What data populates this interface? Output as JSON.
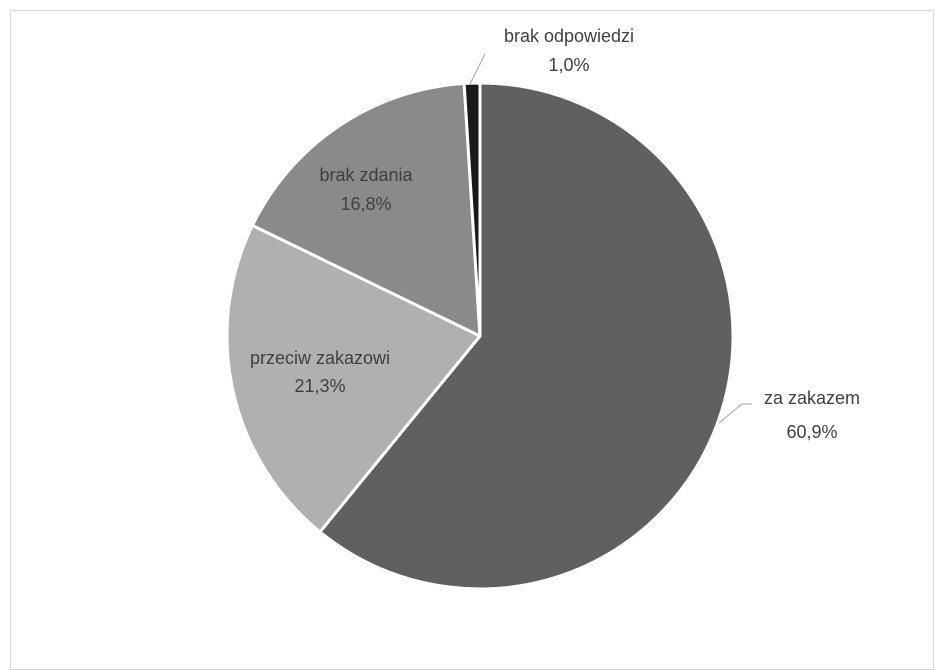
{
  "chart_data": {
    "type": "pie",
    "title": "",
    "slices": [
      {
        "label": "za zakazem",
        "value": 60.9,
        "value_label": "60,9%",
        "color": "#606060"
      },
      {
        "label": "przeciw zakazowi",
        "value": 21.3,
        "value_label": "21,3%",
        "color": "#b0b0b0"
      },
      {
        "label": "brak zdania",
        "value": 16.8,
        "value_label": "16,8%",
        "color": "#8a8a8a"
      },
      {
        "label": "brak odpowiedzi",
        "value": 1.0,
        "value_label": "1,0%",
        "color": "#1a1a1a"
      }
    ],
    "legend": "none",
    "start": "top",
    "direction": "clockwise",
    "slice_border_color": "#ffffff"
  }
}
